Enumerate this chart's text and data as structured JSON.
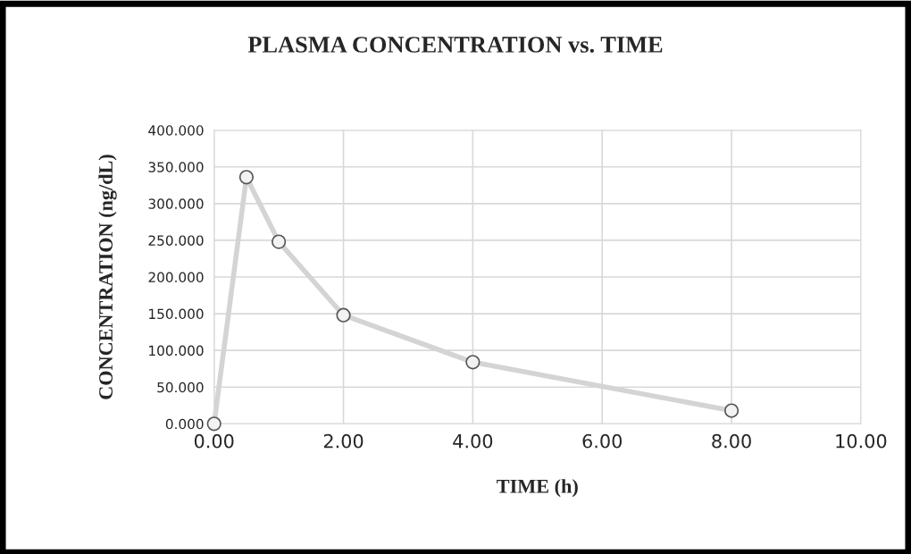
{
  "chart_data": {
    "type": "line",
    "title": "PLASMA CONCENTRATION vs. TIME",
    "xlabel": "TIME (h)",
    "ylabel": "CONCENTRATION (ng/dL)",
    "x": [
      0,
      0.5,
      1,
      2,
      4,
      8
    ],
    "series": [
      {
        "color": "#d4d4d4",
        "values": [
          0,
          336,
          248,
          148,
          84,
          18
        ]
      }
    ],
    "marker": "circle",
    "xlim": [
      0,
      10
    ],
    "xticks": [
      {
        "value": 0,
        "label": "0.00"
      },
      {
        "value": 2,
        "label": "2.00"
      },
      {
        "value": 4,
        "label": "4.00"
      },
      {
        "value": 6,
        "label": "6.00"
      },
      {
        "value": 8,
        "label": "8.00"
      },
      {
        "value": 10,
        "label": "10.00"
      }
    ],
    "ylim": [
      0,
      400
    ],
    "yticks": [
      {
        "value": 0,
        "label": "0.000"
      },
      {
        "value": 50,
        "label": "50.000"
      },
      {
        "value": 100,
        "label": "100.000"
      },
      {
        "value": 150,
        "label": "150.000"
      },
      {
        "value": 200,
        "label": "200.000"
      },
      {
        "value": 250,
        "label": "250.000"
      },
      {
        "value": 300,
        "label": "300.000"
      },
      {
        "value": 350,
        "label": "350.000"
      },
      {
        "value": 400,
        "label": "400.000"
      }
    ],
    "grid": true
  }
}
